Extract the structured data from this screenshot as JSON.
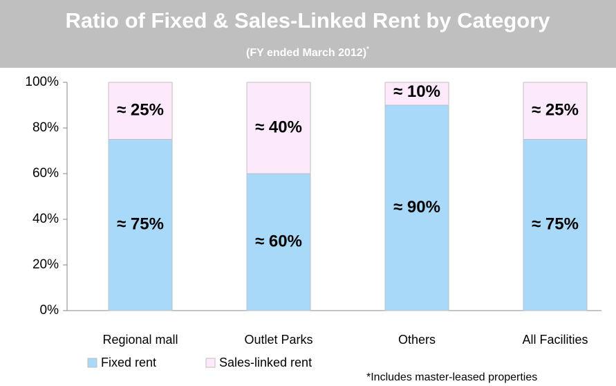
{
  "chart_data": {
    "type": "stacked_bar",
    "title": "Ratio of Fixed & Sales-Linked Rent by Category",
    "subtitle": "(FY ended March 2012)",
    "subtitle_mark": "*",
    "footnote": "*Includes master-leased properties",
    "categories": [
      "Regional mall",
      "Outlet Parks",
      "Others",
      "All Facilities"
    ],
    "series": [
      {
        "name": "Fixed rent",
        "color": "#a9d9f8",
        "values": [
          75,
          60,
          90,
          75
        ],
        "value_labels": [
          "≈ 75%",
          "≈ 60%",
          "≈ 90%",
          "≈ 75%"
        ]
      },
      {
        "name": "Sales-linked rent",
        "color": "#fce9fc",
        "values": [
          25,
          40,
          10,
          25
        ],
        "value_labels": [
          "≈ 25%",
          "≈ 40%",
          "≈ 10%",
          "≈ 25%"
        ]
      }
    ],
    "ylim": [
      0,
      100
    ],
    "yticks": [
      {
        "value": 0,
        "label": "0%"
      },
      {
        "value": 20,
        "label": "20%"
      },
      {
        "value": 40,
        "label": "40%"
      },
      {
        "value": 60,
        "label": "60%"
      },
      {
        "value": 80,
        "label": "80%"
      },
      {
        "value": 100,
        "label": "100%"
      }
    ],
    "legend": "bottom-left"
  }
}
